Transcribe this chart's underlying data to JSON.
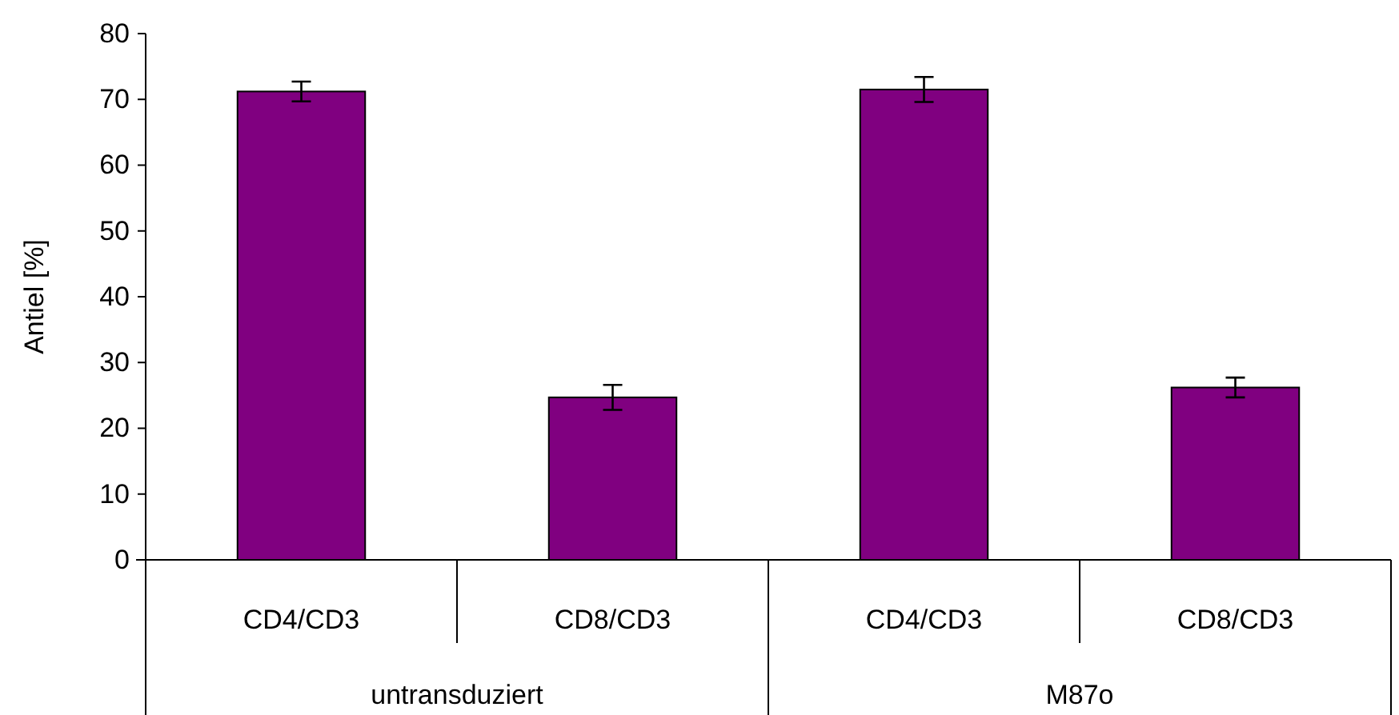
{
  "chart_data": {
    "type": "bar",
    "ylabel": "Antiel [%]",
    "categories": [
      "CD4/CD3",
      "CD8/CD3",
      "CD4/CD3",
      "CD8/CD3"
    ],
    "values": [
      71.2,
      24.7,
      71.5,
      26.2
    ],
    "errors": [
      1.5,
      1.9,
      1.9,
      1.5
    ],
    "color": "#800080",
    "ylim": [
      0,
      80
    ],
    "yticks": [
      0,
      10,
      20,
      30,
      40,
      50,
      60,
      70,
      80
    ],
    "annotations": [
      "untransduziert",
      "M87o"
    ]
  }
}
